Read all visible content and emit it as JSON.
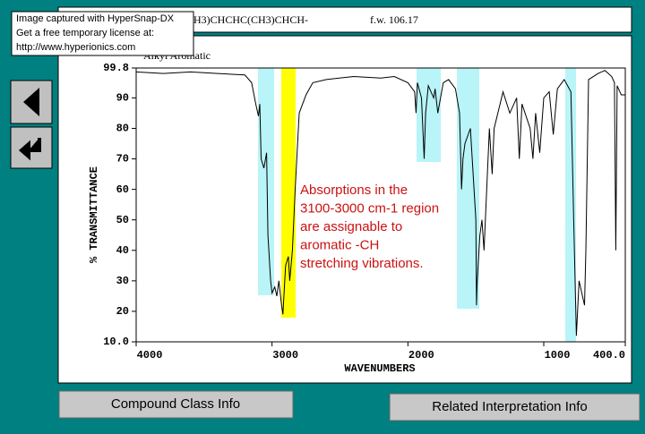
{
  "header": {
    "formula": "H3)CHCHC(CH3)CHCH-",
    "formula_weight": "f.w. 106.17"
  },
  "watermark": {
    "lines": [
      "Image captured with HyperSnap-DX",
      "Get a free temporary license at:",
      "http://www.hyperionics.com"
    ]
  },
  "chart_data": {
    "type": "line",
    "label": "Alkyl Aromatic",
    "xlabel": "WAVENUMBERS",
    "ylabel": "% TRANSMITTANCE",
    "xlim": [
      4000,
      400
    ],
    "ylim": [
      10,
      99.8
    ],
    "xticks": [
      4000,
      3000,
      2000,
      1000,
      {
        "value": 400,
        "label": "400.0"
      }
    ],
    "yticks": [
      {
        "value": 10,
        "label": "10.0"
      },
      20,
      30,
      40,
      50,
      60,
      70,
      80,
      90,
      {
        "value": 99.8,
        "label": "99.8"
      }
    ],
    "color": "#000000",
    "x": [
      4000,
      3800,
      3600,
      3400,
      3200,
      3150,
      3120,
      3100,
      3090,
      3080,
      3060,
      3040,
      3030,
      3010,
      3000,
      2980,
      2965,
      2950,
      2930,
      2920,
      2900,
      2880,
      2870,
      2860,
      2850,
      2830,
      2800,
      2750,
      2700,
      2600,
      2400,
      2200,
      2100,
      2000,
      1950,
      1940,
      1930,
      1900,
      1880,
      1870,
      1850,
      1810,
      1800,
      1780,
      1740,
      1700,
      1650,
      1620,
      1605,
      1595,
      1580,
      1540,
      1500,
      1495,
      1490,
      1470,
      1455,
      1440,
      1400,
      1380,
      1365,
      1300,
      1250,
      1200,
      1180,
      1160,
      1100,
      1080,
      1060,
      1030,
      1000,
      960,
      930,
      900,
      850,
      800,
      780,
      760,
      740,
      700,
      690,
      670,
      600,
      550,
      500,
      480,
      470,
      460,
      430,
      400
    ],
    "values": [
      98.5,
      98,
      98.5,
      98,
      97.5,
      95,
      88,
      84,
      88,
      70,
      67,
      72,
      45,
      30,
      26,
      28,
      25,
      30,
      22,
      19,
      35,
      38,
      30,
      35,
      40,
      60,
      85,
      91,
      95,
      96,
      97,
      96.5,
      97,
      95,
      92,
      85,
      95,
      90,
      70,
      85,
      94,
      90,
      93,
      85,
      95,
      96,
      93,
      85,
      60,
      70,
      75,
      80,
      50,
      22,
      30,
      45,
      50,
      40,
      80,
      65,
      80,
      92,
      85,
      90,
      70,
      88,
      80,
      70,
      85,
      72,
      90,
      92,
      78,
      93,
      96,
      92,
      50,
      12,
      30,
      22,
      40,
      96,
      98,
      99,
      97,
      95,
      40,
      94,
      91,
      91
    ],
    "annotation": [
      "Absorptions in the",
      "3100-3000 cm-1 region",
      "are assignable to",
      "aromatic -CH",
      "stretching vibrations."
    ]
  },
  "buttons": {
    "compound_class": "Compound Class Info",
    "related": "Related Interpretation Info"
  }
}
